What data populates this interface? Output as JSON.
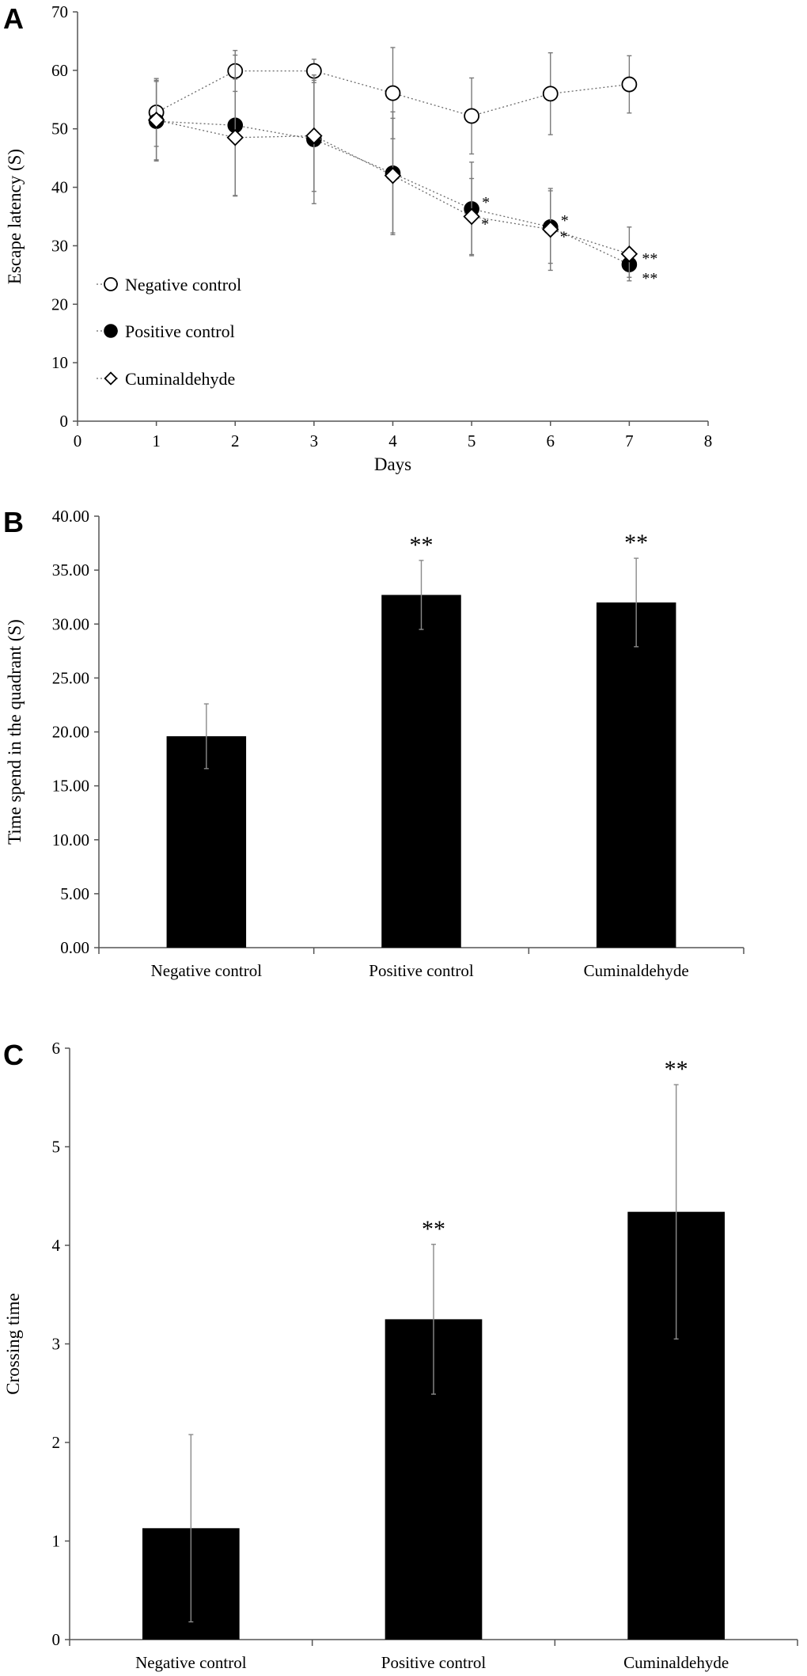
{
  "chart_data": [
    {
      "panel": "A",
      "type": "line",
      "xlabel": "Days",
      "ylabel": "Escape latency (S)",
      "xlim": [
        0,
        8
      ],
      "ylim": [
        0,
        70
      ],
      "xticks": [
        "0",
        "1",
        "2",
        "3",
        "4",
        "5",
        "6",
        "7",
        "8"
      ],
      "yticks": [
        "0",
        "10",
        "20",
        "30",
        "40",
        "50",
        "60",
        "70"
      ],
      "legend_position": "bottom-left",
      "series": [
        {
          "name": "Negative control",
          "marker": "open-circle",
          "x": [
            1,
            2,
            3,
            4,
            5,
            6,
            7
          ],
          "y": [
            52.8,
            59.9,
            59.9,
            56.1,
            52.2,
            56.0,
            57.6
          ],
          "err": [
            5.8,
            3.5,
            2.0,
            7.8,
            6.5,
            7.0,
            4.9
          ],
          "sig": [
            "",
            "",
            "",
            "",
            "",
            "",
            ""
          ]
        },
        {
          "name": "Positive control",
          "marker": "filled-circle",
          "x": [
            1,
            2,
            3,
            4,
            5,
            6,
            7
          ],
          "y": [
            51.3,
            50.6,
            48.2,
            42.4,
            36.3,
            33.2,
            26.8
          ],
          "err": [
            6.8,
            12.0,
            11.0,
            10.5,
            8.0,
            6.2,
            2.2
          ],
          "sig": [
            "",
            "",
            "",
            "",
            "*",
            "*",
            "**"
          ]
        },
        {
          "name": "Cuminaldehyde",
          "marker": "open-diamond",
          "x": [
            1,
            2,
            3,
            4,
            5,
            6,
            7
          ],
          "y": [
            51.5,
            48.5,
            48.8,
            42.0,
            35.0,
            32.8,
            28.6
          ],
          "err": [
            6.8,
            10.0,
            9.5,
            9.8,
            6.5,
            7.0,
            4.6
          ],
          "sig": [
            "",
            "",
            "",
            "",
            "*",
            "*",
            "**"
          ]
        }
      ]
    },
    {
      "panel": "B",
      "type": "bar",
      "ylabel": "Time spend in the quadrant (S)",
      "xlabel": "",
      "ylim": [
        0,
        40
      ],
      "yticks": [
        "0.00",
        "5.00",
        "10.00",
        "15.00",
        "20.00",
        "25.00",
        "30.00",
        "35.00",
        "40.00"
      ],
      "categories": [
        "Negative control",
        "Positive control",
        "Cuminaldehyde"
      ],
      "values": [
        19.6,
        32.7,
        32.0
      ],
      "err": [
        3.0,
        3.2,
        4.1
      ],
      "sig": [
        "",
        "**",
        "**"
      ]
    },
    {
      "panel": "C",
      "type": "bar",
      "ylabel": "Crossing time",
      "xlabel": "",
      "ylim": [
        0,
        6
      ],
      "yticks": [
        "0",
        "1",
        "2",
        "3",
        "4",
        "5",
        "6"
      ],
      "categories": [
        "Negative control",
        "Positive control",
        "Cuminaldehyde"
      ],
      "values": [
        1.13,
        3.25,
        4.34
      ],
      "err": [
        0.95,
        0.76,
        1.29
      ],
      "sig": [
        "",
        "**",
        "**"
      ]
    }
  ]
}
